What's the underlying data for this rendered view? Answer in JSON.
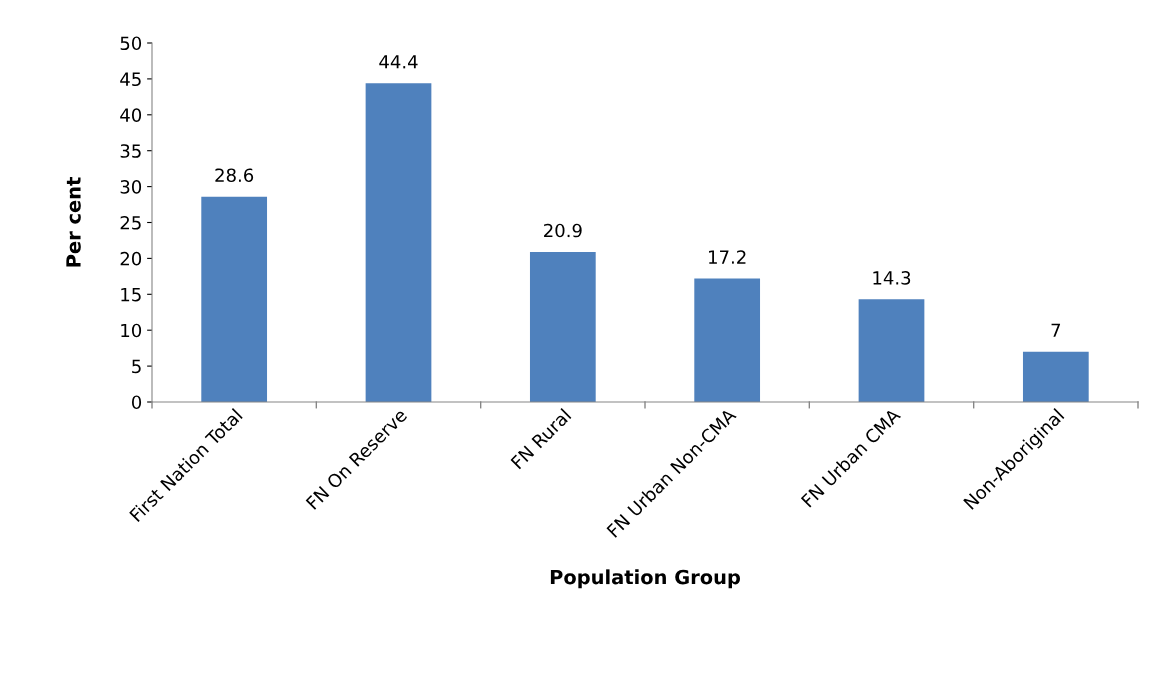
{
  "chart_data": {
    "type": "bar",
    "categories": [
      "First Nation Total",
      "FN On Reserve",
      "FN Rural",
      "FN Urban Non-CMA",
      "FN Urban CMA",
      "Non-Aboriginal"
    ],
    "values": [
      28.6,
      44.4,
      20.9,
      17.2,
      14.3,
      7
    ],
    "color": "#4f81bd",
    "xlabel": "Population Group",
    "ylabel": "Per cent",
    "ylim": [
      0,
      50
    ],
    "yticks": [
      0,
      5,
      10,
      15,
      20,
      25,
      30,
      35,
      40,
      45,
      50
    ],
    "data_labels": true,
    "grid": false,
    "legend": false
  }
}
